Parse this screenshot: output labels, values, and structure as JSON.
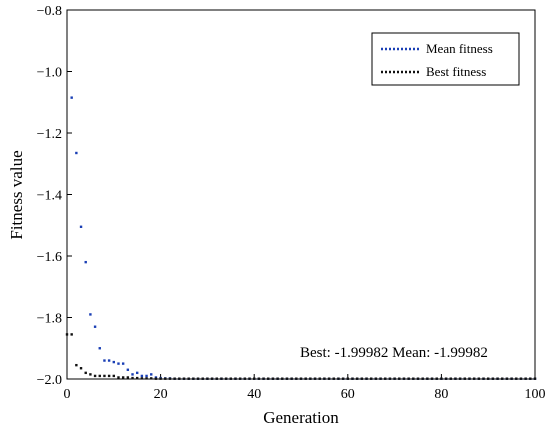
{
  "chart_data": {
    "type": "scatter",
    "xlabel": "Generation",
    "ylabel": "Fitness value",
    "xlim": [
      0,
      100
    ],
    "ylim": [
      -2.0,
      -0.8
    ],
    "xticks": [
      0,
      20,
      40,
      60,
      80,
      100
    ],
    "yticks": [
      -0.8,
      -1.0,
      -1.2,
      -1.4,
      -1.6,
      -1.8,
      -2.0
    ],
    "xtick_labels": [
      "0",
      "20",
      "40",
      "60",
      "80",
      "100"
    ],
    "ytick_labels": [
      "−0.8",
      "−1.0",
      "−1.2",
      "−1.4",
      "−1.6",
      "−1.8",
      "−2.0"
    ],
    "legend_position": "top-right",
    "annotation": "Best: -1.99982 Mean: -1.99982",
    "series": [
      {
        "name": "Mean fitness",
        "color": "#1a3fb5",
        "points": [
          [
            1,
            -1.085
          ],
          [
            2,
            -1.265
          ],
          [
            3,
            -1.505
          ],
          [
            4,
            -1.62
          ],
          [
            5,
            -1.79
          ],
          [
            6,
            -1.83
          ],
          [
            7,
            -1.9
          ],
          [
            8,
            -1.94
          ],
          [
            9,
            -1.94
          ],
          [
            10,
            -1.945
          ],
          [
            11,
            -1.95
          ],
          [
            12,
            -1.95
          ],
          [
            13,
            -1.97
          ],
          [
            14,
            -1.985
          ],
          [
            15,
            -1.98
          ],
          [
            16,
            -1.99
          ],
          [
            17,
            -1.99
          ],
          [
            18,
            -1.985
          ],
          [
            19,
            -1.995
          ],
          [
            20,
            -1.997
          ],
          [
            21,
            -1.998
          ],
          [
            22,
            -1.998
          ],
          [
            23,
            -1.999
          ],
          [
            24,
            -1.999
          ],
          [
            25,
            -1.999
          ],
          [
            26,
            -1.999
          ],
          [
            27,
            -1.999
          ],
          [
            28,
            -1.999
          ],
          [
            29,
            -1.999
          ],
          [
            30,
            -1.999
          ],
          [
            31,
            -1.999
          ],
          [
            32,
            -1.999
          ],
          [
            33,
            -1.999
          ],
          [
            34,
            -1.999
          ],
          [
            35,
            -1.999
          ],
          [
            36,
            -1.999
          ],
          [
            37,
            -1.999
          ],
          [
            38,
            -1.999
          ],
          [
            39,
            -1.999
          ],
          [
            40,
            -1.999
          ],
          [
            41,
            -1.999
          ],
          [
            42,
            -1.999
          ],
          [
            43,
            -1.999
          ],
          [
            44,
            -1.999
          ],
          [
            45,
            -1.999
          ],
          [
            46,
            -1.999
          ],
          [
            47,
            -1.999
          ],
          [
            48,
            -1.999
          ],
          [
            49,
            -1.999
          ],
          [
            50,
            -1.999
          ],
          [
            51,
            -1.999
          ],
          [
            52,
            -1.999
          ],
          [
            53,
            -1.999
          ],
          [
            54,
            -1.999
          ],
          [
            55,
            -1.999
          ],
          [
            56,
            -1.999
          ],
          [
            57,
            -1.999
          ],
          [
            58,
            -1.999
          ],
          [
            59,
            -1.999
          ],
          [
            60,
            -1.999
          ],
          [
            61,
            -1.999
          ],
          [
            62,
            -1.999
          ],
          [
            63,
            -1.999
          ],
          [
            64,
            -1.999
          ],
          [
            65,
            -1.999
          ],
          [
            66,
            -1.999
          ],
          [
            67,
            -1.999
          ],
          [
            68,
            -1.999
          ],
          [
            69,
            -1.999
          ],
          [
            70,
            -1.999
          ],
          [
            71,
            -1.999
          ],
          [
            72,
            -1.999
          ],
          [
            73,
            -1.999
          ],
          [
            74,
            -1.999
          ],
          [
            75,
            -1.999
          ],
          [
            76,
            -1.999
          ],
          [
            77,
            -1.999
          ],
          [
            78,
            -1.999
          ],
          [
            79,
            -1.999
          ],
          [
            80,
            -1.999
          ],
          [
            81,
            -1.999
          ],
          [
            82,
            -1.999
          ],
          [
            83,
            -1.999
          ],
          [
            84,
            -1.999
          ],
          [
            85,
            -1.999
          ],
          [
            86,
            -1.999
          ],
          [
            87,
            -1.999
          ],
          [
            88,
            -1.999
          ],
          [
            89,
            -1.999
          ],
          [
            90,
            -1.999
          ],
          [
            91,
            -1.999
          ],
          [
            92,
            -1.999
          ],
          [
            93,
            -1.999
          ],
          [
            94,
            -1.999
          ],
          [
            95,
            -1.999
          ],
          [
            96,
            -1.999
          ],
          [
            97,
            -1.999
          ],
          [
            98,
            -1.999
          ],
          [
            99,
            -1.999
          ],
          [
            100,
            -1.999
          ]
        ]
      },
      {
        "name": "Best fitness",
        "color": "#111111",
        "points": [
          [
            0,
            -1.855
          ],
          [
            1,
            -1.855
          ],
          [
            2,
            -1.955
          ],
          [
            3,
            -1.965
          ],
          [
            4,
            -1.98
          ],
          [
            5,
            -1.985
          ],
          [
            6,
            -1.99
          ],
          [
            7,
            -1.99
          ],
          [
            8,
            -1.99
          ],
          [
            9,
            -1.99
          ],
          [
            10,
            -1.99
          ],
          [
            11,
            -1.995
          ],
          [
            12,
            -1.995
          ],
          [
            13,
            -1.995
          ],
          [
            14,
            -1.997
          ],
          [
            15,
            -1.997
          ],
          [
            16,
            -1.998
          ],
          [
            17,
            -1.998
          ],
          [
            18,
            -1.998
          ],
          [
            19,
            -1.999
          ],
          [
            20,
            -1.999
          ],
          [
            21,
            -1.999
          ],
          [
            22,
            -1.999
          ],
          [
            23,
            -1.999
          ],
          [
            24,
            -1.999
          ],
          [
            25,
            -1.999
          ],
          [
            26,
            -1.999
          ],
          [
            27,
            -1.999
          ],
          [
            28,
            -1.999
          ],
          [
            29,
            -1.999
          ],
          [
            30,
            -1.999
          ],
          [
            31,
            -1.999
          ],
          [
            32,
            -1.999
          ],
          [
            33,
            -1.999
          ],
          [
            34,
            -1.999
          ],
          [
            35,
            -1.999
          ],
          [
            36,
            -1.999
          ],
          [
            37,
            -1.999
          ],
          [
            38,
            -1.999
          ],
          [
            39,
            -1.999
          ],
          [
            40,
            -1.999
          ],
          [
            41,
            -1.999
          ],
          [
            42,
            -1.999
          ],
          [
            43,
            -1.999
          ],
          [
            44,
            -1.999
          ],
          [
            45,
            -1.999
          ],
          [
            46,
            -1.999
          ],
          [
            47,
            -1.999
          ],
          [
            48,
            -1.999
          ],
          [
            49,
            -1.999
          ],
          [
            50,
            -1.999
          ],
          [
            51,
            -1.999
          ],
          [
            52,
            -1.999
          ],
          [
            53,
            -1.999
          ],
          [
            54,
            -1.999
          ],
          [
            55,
            -1.999
          ],
          [
            56,
            -1.999
          ],
          [
            57,
            -1.999
          ],
          [
            58,
            -1.999
          ],
          [
            59,
            -1.999
          ],
          [
            60,
            -1.999
          ],
          [
            61,
            -1.999
          ],
          [
            62,
            -1.999
          ],
          [
            63,
            -1.999
          ],
          [
            64,
            -1.999
          ],
          [
            65,
            -1.999
          ],
          [
            66,
            -1.999
          ],
          [
            67,
            -1.999
          ],
          [
            68,
            -1.999
          ],
          [
            69,
            -1.999
          ],
          [
            70,
            -1.999
          ],
          [
            71,
            -1.999
          ],
          [
            72,
            -1.999
          ],
          [
            73,
            -1.999
          ],
          [
            74,
            -1.999
          ],
          [
            75,
            -1.999
          ],
          [
            76,
            -1.999
          ],
          [
            77,
            -1.999
          ],
          [
            78,
            -1.999
          ],
          [
            79,
            -1.999
          ],
          [
            80,
            -1.999
          ],
          [
            81,
            -1.999
          ],
          [
            82,
            -1.999
          ],
          [
            83,
            -1.999
          ],
          [
            84,
            -1.999
          ],
          [
            85,
            -1.999
          ],
          [
            86,
            -1.999
          ],
          [
            87,
            -1.999
          ],
          [
            88,
            -1.999
          ],
          [
            89,
            -1.999
          ],
          [
            90,
            -1.999
          ],
          [
            91,
            -1.999
          ],
          [
            92,
            -1.999
          ],
          [
            93,
            -1.999
          ],
          [
            94,
            -1.999
          ],
          [
            95,
            -1.999
          ],
          [
            96,
            -1.999
          ],
          [
            97,
            -1.999
          ],
          [
            98,
            -1.999
          ],
          [
            99,
            -1.999
          ],
          [
            100,
            -1.999
          ]
        ]
      }
    ]
  }
}
